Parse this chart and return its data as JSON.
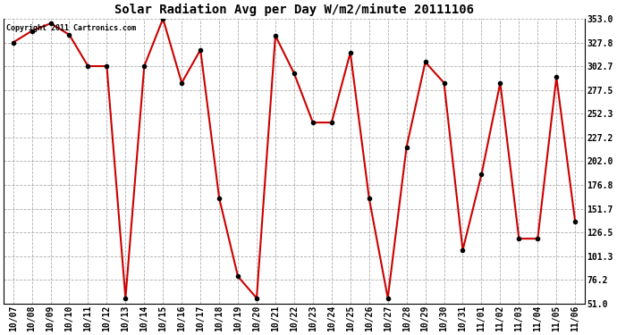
{
  "title": "Solar Radiation Avg per Day W/m2/minute 20111106",
  "copyright_text": "Copyright 2011 Cartronics.com",
  "labels": [
    "10/07",
    "10/08",
    "10/09",
    "10/10",
    "10/11",
    "10/12",
    "10/13",
    "10/14",
    "10/15",
    "10/16",
    "10/17",
    "10/18",
    "10/19",
    "10/20",
    "10/21",
    "10/22",
    "10/23",
    "10/24",
    "10/25",
    "10/26",
    "10/27",
    "10/28",
    "10/29",
    "10/30",
    "10/31",
    "11/01",
    "11/02",
    "11/03",
    "11/04",
    "11/05",
    "11/06"
  ],
  "values": [
    327.8,
    340.0,
    348.0,
    336.0,
    302.7,
    302.7,
    57.0,
    302.7,
    353.0,
    285.0,
    320.0,
    163.0,
    80.0,
    57.0,
    335.0,
    295.0,
    243.0,
    243.0,
    317.0,
    163.0,
    57.0,
    217.0,
    307.0,
    285.0,
    108.0,
    188.0,
    285.0,
    120.0,
    120.0,
    291.0,
    138.0
  ],
  "line_color": "#cc0000",
  "marker_color": "#000000",
  "bg_color": "#ffffff",
  "grid_color": "#999999",
  "ylim": [
    51.0,
    353.0
  ],
  "yticks": [
    51.0,
    76.2,
    101.3,
    126.5,
    151.7,
    176.8,
    202.0,
    227.2,
    252.3,
    277.5,
    302.7,
    327.8,
    353.0
  ],
  "title_fontsize": 10,
  "tick_fontsize": 7,
  "copyright_fontsize": 6
}
